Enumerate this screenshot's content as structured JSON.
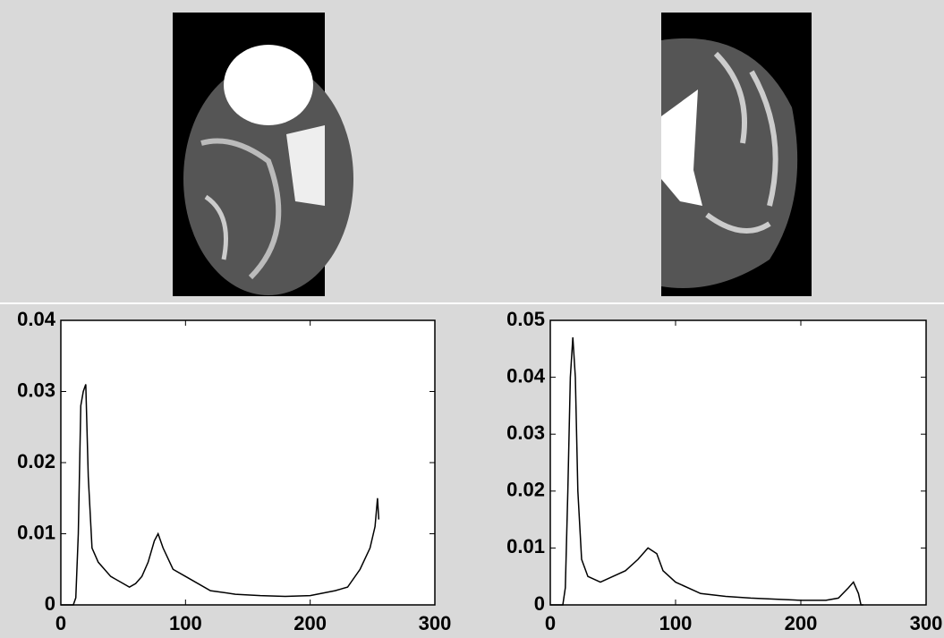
{
  "chart_data": [
    {
      "type": "line",
      "x": [
        0,
        10,
        12,
        14,
        16,
        18,
        20,
        22,
        25,
        30,
        40,
        50,
        55,
        60,
        65,
        70,
        75,
        78,
        82,
        90,
        100,
        120,
        140,
        160,
        180,
        200,
        220,
        230,
        240,
        248,
        252,
        254,
        255
      ],
      "values": [
        0,
        0,
        0.001,
        0.01,
        0.028,
        0.03,
        0.031,
        0.018,
        0.008,
        0.006,
        0.004,
        0.003,
        0.0025,
        0.003,
        0.004,
        0.006,
        0.009,
        0.01,
        0.008,
        0.005,
        0.004,
        0.002,
        0.0015,
        0.0013,
        0.0012,
        0.0013,
        0.002,
        0.0025,
        0.005,
        0.008,
        0.011,
        0.015,
        0.012
      ],
      "color": "#000000",
      "xlim": [
        0,
        300
      ],
      "xticks": [
        0,
        100,
        200,
        300
      ],
      "ylim": [
        0,
        0.04
      ],
      "yticks": [
        0,
        0.01,
        0.02,
        0.03,
        0.04
      ]
    },
    {
      "type": "line",
      "x": [
        0,
        10,
        12,
        14,
        16,
        18,
        20,
        22,
        25,
        30,
        40,
        50,
        60,
        70,
        78,
        85,
        90,
        100,
        120,
        140,
        160,
        180,
        200,
        220,
        230,
        238,
        242,
        246,
        248,
        250
      ],
      "values": [
        0,
        0,
        0.003,
        0.02,
        0.04,
        0.047,
        0.04,
        0.02,
        0.008,
        0.005,
        0.004,
        0.005,
        0.006,
        0.008,
        0.01,
        0.009,
        0.006,
        0.004,
        0.002,
        0.0015,
        0.0012,
        0.001,
        0.0008,
        0.0008,
        0.0012,
        0.003,
        0.004,
        0.002,
        0,
        0
      ],
      "color": "#000000",
      "xlim": [
        0,
        300
      ],
      "xticks": [
        0,
        100,
        200,
        300
      ],
      "ylim": [
        0,
        0.05
      ],
      "yticks": [
        0,
        0.01,
        0.02,
        0.03,
        0.04,
        0.05
      ]
    }
  ]
}
